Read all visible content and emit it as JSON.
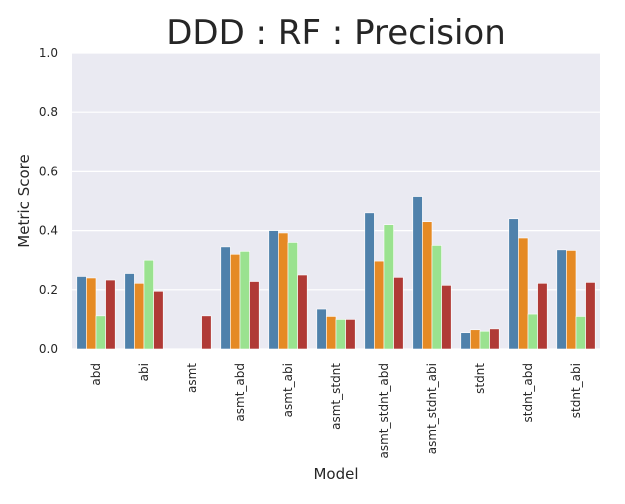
{
  "chart_data": {
    "type": "bar",
    "title": "DDD : RF : Precision",
    "xlabel": "Model",
    "ylabel": "Metric Score",
    "ylim": [
      0.0,
      1.0
    ],
    "yticks": [
      "0.0",
      "0.2",
      "0.4",
      "0.6",
      "0.8",
      "1.0"
    ],
    "grid": true,
    "legend": "none",
    "categories": [
      "abd",
      "abi",
      "asmt",
      "asmt_abd",
      "asmt_abi",
      "asmt_stdnt",
      "asmt_stdnt_abd",
      "asmt_stdnt_abi",
      "stdnt",
      "stdnt_abd",
      "stdnt_abi"
    ],
    "series": [
      {
        "color": "#4f81ab",
        "values": [
          0.245,
          0.255,
          0.0,
          0.345,
          0.4,
          0.135,
          0.46,
          0.515,
          0.055,
          0.44,
          0.335
        ]
      },
      {
        "color": "#e58a24",
        "values": [
          0.24,
          0.222,
          0.0,
          0.32,
          0.392,
          0.11,
          0.297,
          0.43,
          0.065,
          0.375,
          0.333
        ]
      },
      {
        "color": "#9ae28f",
        "values": [
          0.112,
          0.3,
          0.0,
          0.33,
          0.36,
          0.1,
          0.42,
          0.35,
          0.06,
          0.118,
          0.11
        ]
      },
      {
        "color": "#b03a36",
        "values": [
          0.233,
          0.195,
          0.112,
          0.228,
          0.25,
          0.1,
          0.242,
          0.215,
          0.068,
          0.222,
          0.225
        ]
      }
    ],
    "colors": {
      "plot_background": "#eaeaf2",
      "grid": "#ffffff",
      "text": "#262626"
    }
  }
}
